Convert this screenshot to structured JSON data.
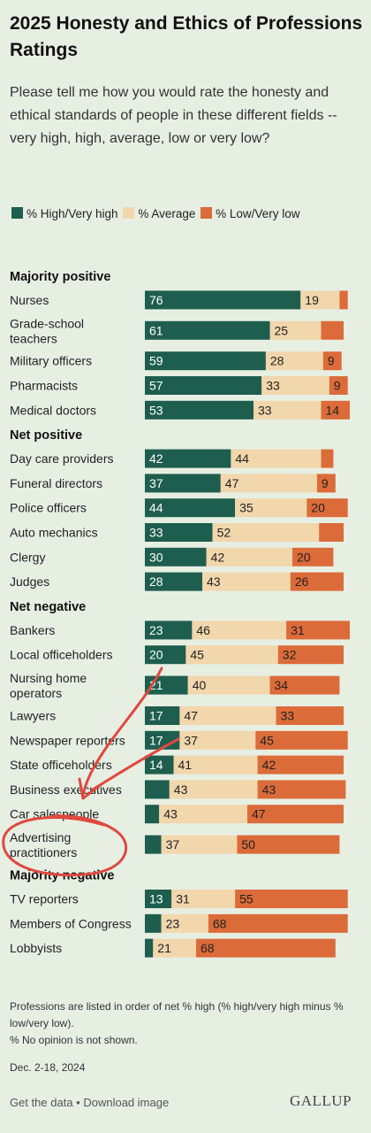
{
  "title": "2025 Honesty and Ethics of Professions Ratings",
  "subtitle": "Please tell me how you would rate the honesty and ethical standards of people in these different fields -- very high, high, average, low or very low?",
  "legend": {
    "high": "% High/Very high",
    "average": "% Average",
    "low": "% Low/Very low"
  },
  "colors": {
    "high": "#1e5e4e",
    "average": "#f2d6ac",
    "low": "#db6b39"
  },
  "chart_data": {
    "type": "bar",
    "stacked": true,
    "orientation": "horizontal",
    "series_names": [
      "% High/Very high",
      "% Average",
      "% Low/Very low"
    ],
    "xlim": [
      0,
      100
    ],
    "groups": [
      {
        "name": "Majority positive",
        "rows": [
          {
            "label": "Nurses",
            "values": [
              76,
              19,
              4
            ],
            "labels": [
              "76",
              "19",
              ""
            ]
          },
          {
            "label": "Grade-school teachers",
            "values": [
              61,
              25,
              11
            ],
            "labels": [
              "61",
              "25",
              ""
            ]
          },
          {
            "label": "Military officers",
            "values": [
              59,
              28,
              9
            ],
            "labels": [
              "59",
              "28",
              "9"
            ]
          },
          {
            "label": "Pharmacists",
            "values": [
              57,
              33,
              9
            ],
            "labels": [
              "57",
              "33",
              "9"
            ]
          },
          {
            "label": "Medical doctors",
            "values": [
              53,
              33,
              14
            ],
            "labels": [
              "53",
              "33",
              "14"
            ]
          }
        ]
      },
      {
        "name": "Net positive",
        "rows": [
          {
            "label": "Day care providers",
            "values": [
              42,
              44,
              6
            ],
            "labels": [
              "42",
              "44",
              ""
            ]
          },
          {
            "label": "Funeral directors",
            "values": [
              37,
              47,
              9
            ],
            "labels": [
              "37",
              "47",
              "9"
            ]
          },
          {
            "label": "Police officers",
            "values": [
              44,
              35,
              20
            ],
            "labels": [
              "44",
              "35",
              "20"
            ]
          },
          {
            "label": "Auto mechanics",
            "values": [
              33,
              52,
              12
            ],
            "labels": [
              "33",
              "52",
              ""
            ]
          },
          {
            "label": "Clergy",
            "values": [
              30,
              42,
              20
            ],
            "labels": [
              "30",
              "42",
              "20"
            ]
          },
          {
            "label": "Judges",
            "values": [
              28,
              43,
              26
            ],
            "labels": [
              "28",
              "43",
              "26"
            ]
          }
        ]
      },
      {
        "name": "Net negative",
        "rows": [
          {
            "label": "Bankers",
            "values": [
              23,
              46,
              31
            ],
            "labels": [
              "23",
              "46",
              "31"
            ]
          },
          {
            "label": "Local officeholders",
            "values": [
              20,
              45,
              32
            ],
            "labels": [
              "20",
              "45",
              "32"
            ]
          },
          {
            "label": "Nursing home operators",
            "values": [
              21,
              40,
              34
            ],
            "labels": [
              "21",
              "40",
              "34"
            ]
          },
          {
            "label": "Lawyers",
            "values": [
              17,
              47,
              33
            ],
            "labels": [
              "17",
              "47",
              "33"
            ]
          },
          {
            "label": "Newspaper reporters",
            "values": [
              17,
              37,
              45
            ],
            "labels": [
              "17",
              "37",
              "45"
            ]
          },
          {
            "label": "State officeholders",
            "values": [
              14,
              41,
              42
            ],
            "labels": [
              "14",
              "41",
              "42"
            ]
          },
          {
            "label": "Business executives",
            "values": [
              12,
              43,
              43
            ],
            "labels": [
              "",
              "43",
              "43"
            ]
          },
          {
            "label": "Car salespeople",
            "values": [
              7,
              43,
              47
            ],
            "labels": [
              "",
              "43",
              "47"
            ]
          },
          {
            "label": "Advertising practitioners",
            "values": [
              8,
              37,
              50
            ],
            "labels": [
              "",
              "37",
              "50"
            ]
          }
        ]
      },
      {
        "name": "Majority negative",
        "rows": [
          {
            "label": "TV reporters",
            "values": [
              13,
              31,
              55
            ],
            "labels": [
              "13",
              "31",
              "55"
            ]
          },
          {
            "label": "Members of Congress",
            "values": [
              8,
              23,
              68
            ],
            "labels": [
              "",
              "23",
              "68"
            ]
          },
          {
            "label": "Lobbyists",
            "values": [
              4,
              21,
              68
            ],
            "labels": [
              "",
              "21",
              "68"
            ]
          }
        ]
      }
    ]
  },
  "footnote": {
    "line1": "Professions are listed in order of net % high (% high/very high minus % low/very low).",
    "line2": "% No opinion is not shown."
  },
  "date": "Dec. 2-18, 2024",
  "footer": {
    "get_data": "Get the data",
    "separator": " • ",
    "download": "Download image",
    "logo": "GALLUP"
  },
  "annotation": {
    "color": "#e0483e"
  }
}
